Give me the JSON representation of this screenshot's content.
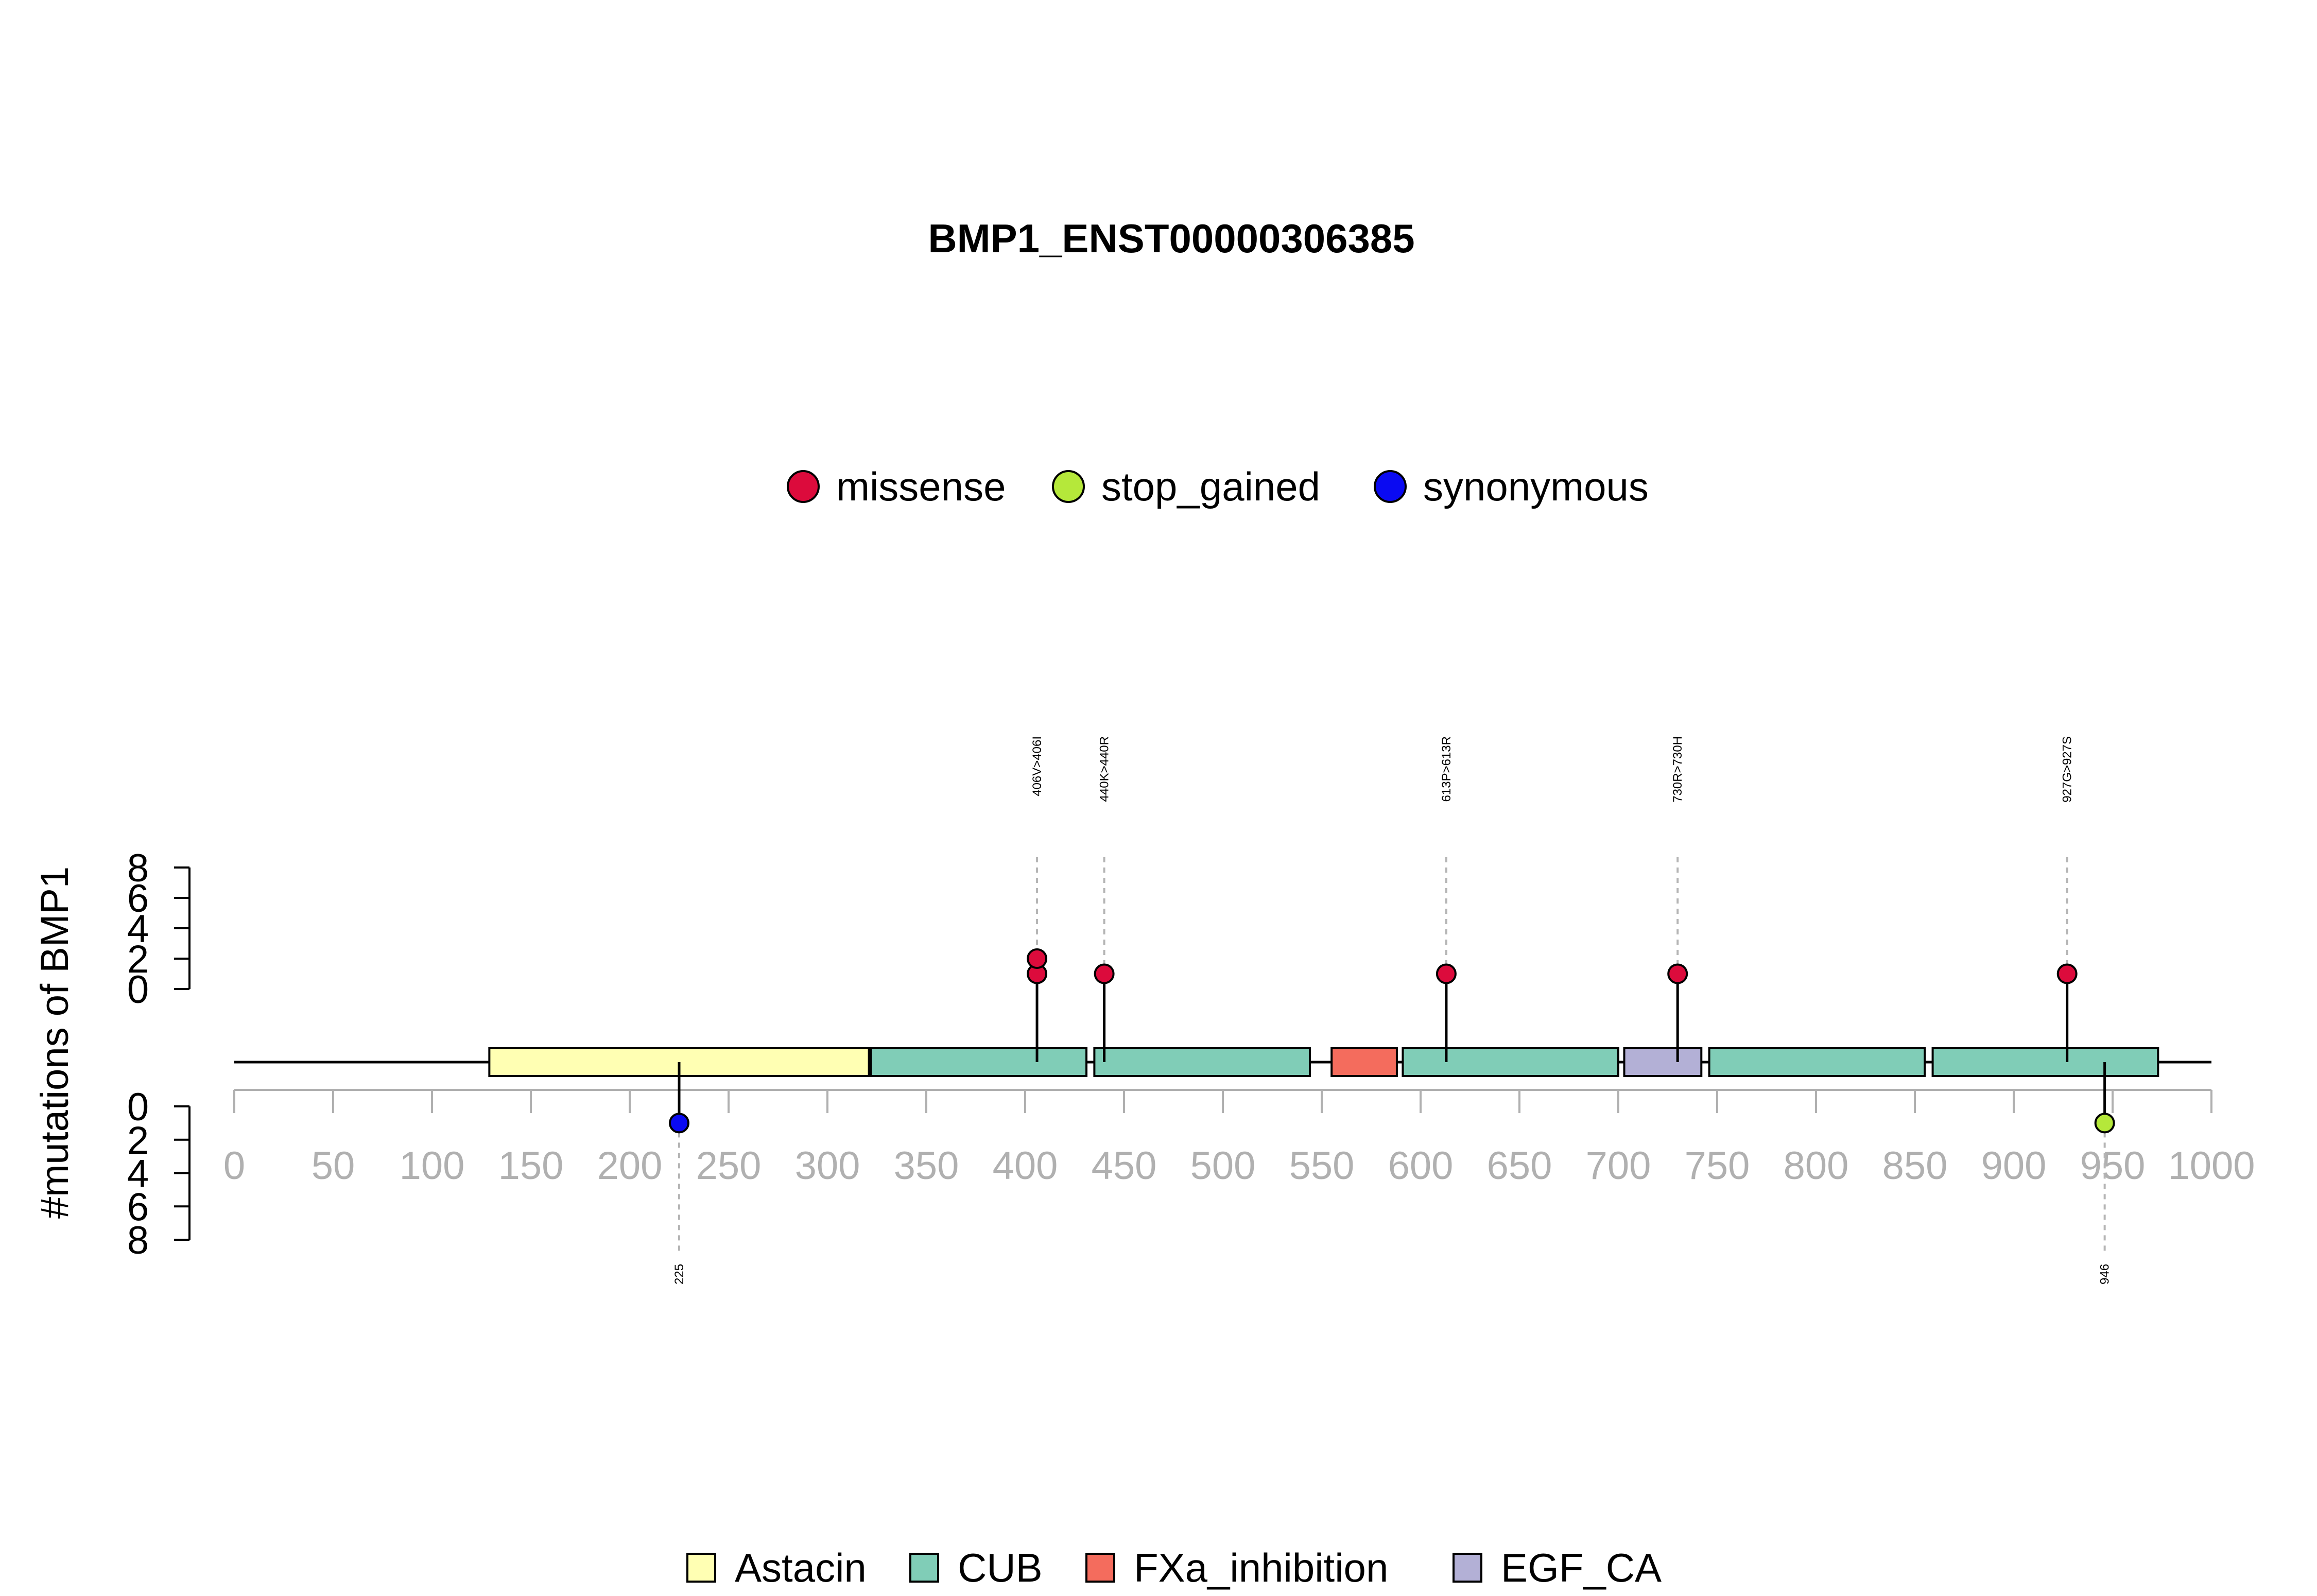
{
  "chart_data": {
    "type": "lollipop",
    "title": "BMP1_ENST00000306385",
    "ylabel": "#mutations of BMP1",
    "protein_length": 1000,
    "xlim": [
      0,
      1000
    ],
    "xticks": [
      "0",
      "50",
      "100",
      "150",
      "200",
      "250",
      "300",
      "350",
      "400",
      "450",
      "500",
      "550",
      "600",
      "650",
      "700",
      "750",
      "800",
      "850",
      "900",
      "950",
      "1000"
    ],
    "yticks_top": [
      "8",
      "6",
      "4",
      "2",
      "0"
    ],
    "yticks_bottom": [
      "0",
      "2",
      "4",
      "6",
      "8"
    ],
    "ylim": [
      0,
      8
    ],
    "mutation_legend": [
      {
        "name": "missense",
        "color": "#DC0B3C"
      },
      {
        "name": "stop_gained",
        "color": "#B5E83A"
      },
      {
        "name": "synonymous",
        "color": "#0A0AF2"
      }
    ],
    "domain_legend": [
      {
        "name": "Astacin",
        "color": "#FFFFB3"
      },
      {
        "name": "CUB",
        "color": "#80CDB7"
      },
      {
        "name": "FXa_inhibition",
        "color": "#F46C5D"
      },
      {
        "name": "EGF_CA",
        "color": "#B3B0D6"
      }
    ],
    "domains": [
      {
        "name": "Astacin",
        "start": 129,
        "end": 321
      },
      {
        "name": "CUB",
        "start": 322,
        "end": 431
      },
      {
        "name": "CUB",
        "start": 435,
        "end": 544
      },
      {
        "name": "FXa_inhibition",
        "start": 555,
        "end": 588
      },
      {
        "name": "CUB",
        "start": 591,
        "end": 700
      },
      {
        "name": "EGF_CA",
        "start": 703,
        "end": 742
      },
      {
        "name": "CUB",
        "start": 746,
        "end": 855
      },
      {
        "name": "CUB",
        "start": 859,
        "end": 973
      }
    ],
    "mutations_top": [
      {
        "pos": 406,
        "label": "406V>406I",
        "count": 2,
        "type": "missense"
      },
      {
        "pos": 440,
        "label": "440K>440R",
        "count": 1,
        "type": "missense"
      },
      {
        "pos": 613,
        "label": "613P>613R",
        "count": 1,
        "type": "missense"
      },
      {
        "pos": 730,
        "label": "730R>730H",
        "count": 1,
        "type": "missense"
      },
      {
        "pos": 927,
        "label": "927G>927S",
        "count": 1,
        "type": "missense"
      }
    ],
    "mutations_bottom": [
      {
        "pos": 225,
        "label": "225",
        "count": 1,
        "type": "synonymous"
      },
      {
        "pos": 946,
        "label": "946",
        "count": 1,
        "type": "stop_gained"
      }
    ]
  }
}
